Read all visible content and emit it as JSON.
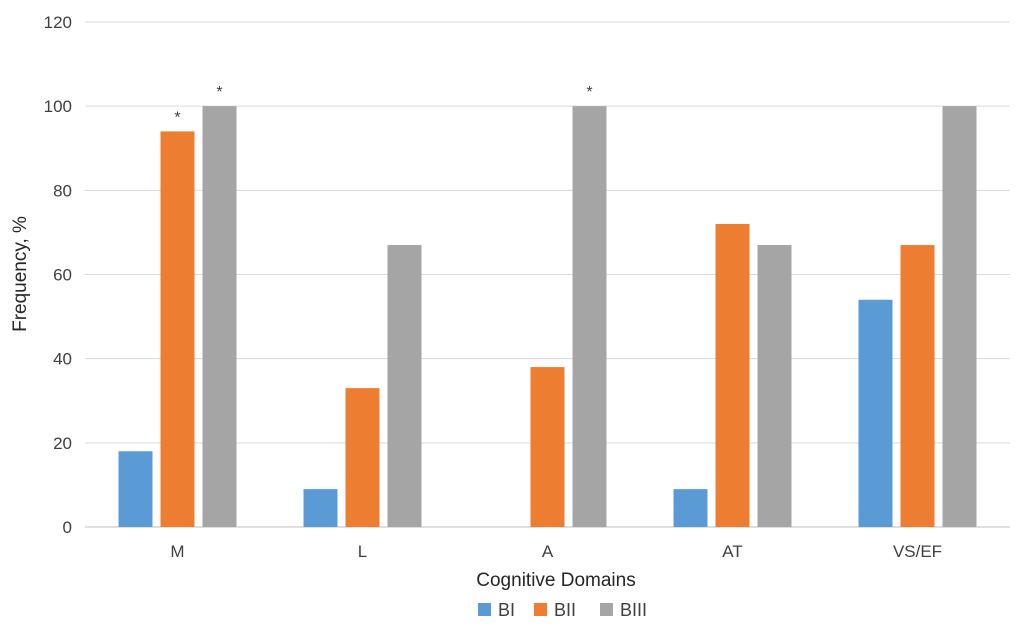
{
  "chart_data": {
    "type": "bar",
    "title": "",
    "xlabel": "Cognitive Domains",
    "ylabel": "Frequency, %",
    "ylim": [
      0,
      120
    ],
    "yticks": [
      0,
      20,
      40,
      60,
      80,
      100,
      120
    ],
    "grid": true,
    "legend_position": "bottom",
    "categories": [
      "M",
      "L",
      "A",
      "AT",
      "VS/EF"
    ],
    "series": [
      {
        "name": "BI",
        "color": "#5b9bd5",
        "values": [
          18,
          9,
          0,
          9,
          54
        ]
      },
      {
        "name": "BII",
        "color": "#ed7d31",
        "values": [
          94,
          33,
          38,
          72,
          67
        ]
      },
      {
        "name": "BIII",
        "color": "#a5a5a5",
        "values": [
          100,
          67,
          100,
          67,
          100
        ]
      }
    ],
    "annotations": [
      {
        "text": "*",
        "category": "M",
        "series": "BII"
      },
      {
        "text": "*",
        "category": "M",
        "series": "BIII"
      },
      {
        "text": "*",
        "category": "A",
        "series": "BIII"
      }
    ]
  }
}
